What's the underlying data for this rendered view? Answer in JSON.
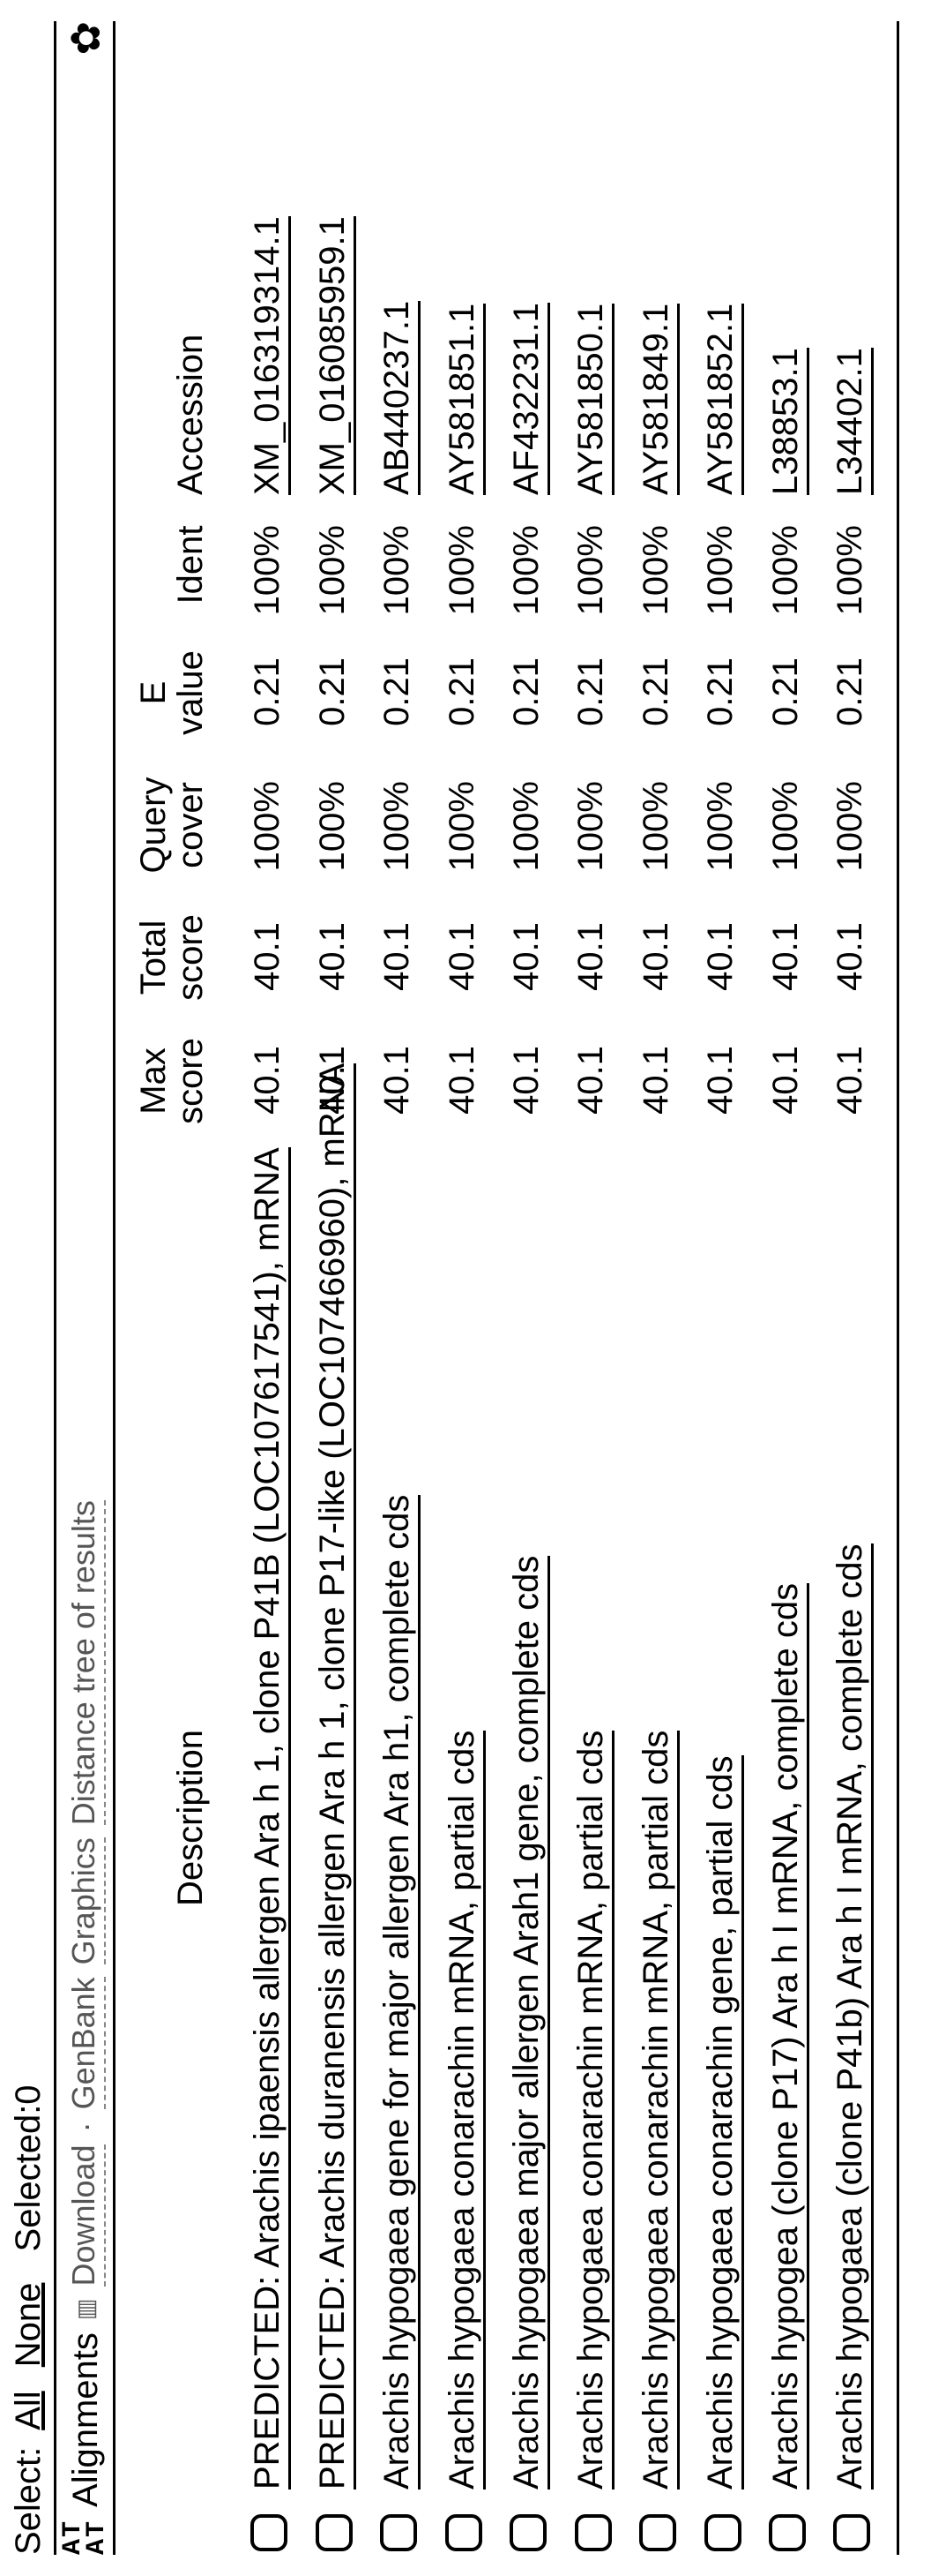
{
  "select_row": {
    "label": "Select:",
    "all": "All",
    "none": "None",
    "selected_label": "Selected:",
    "selected_count": "0"
  },
  "toolbar": {
    "at_top": "AT",
    "at_bot": "AT",
    "alignments": "Alignments",
    "download": "Download",
    "genbank": "GenBank",
    "graphics": "Graphics",
    "distance_tree": "Distance tree of results"
  },
  "columns": {
    "description": "Description",
    "max_score_l1": "Max",
    "max_score_l2": "score",
    "total_score_l1": "Total",
    "total_score_l2": "score",
    "query_cover_l1": "Query",
    "query_cover_l2": "cover",
    "e_value_l1": "E",
    "e_value_l2": "value",
    "ident": "Ident",
    "accession": "Accession"
  },
  "rows": [
    {
      "description": "PREDICTED: Arachis ipaensis allergen Ara h 1, clone P41B (LOC107617541), mRNA",
      "max_score": "40.1",
      "total_score": "40.1",
      "query_cover": "100%",
      "e_value": "0.21",
      "ident": "100%",
      "accession": "XM_016319314.1"
    },
    {
      "description": "PREDICTED: Arachis duranensis allergen Ara h 1, clone P17-like (LOC107466960), mRNA",
      "max_score": "40.1",
      "total_score": "40.1",
      "query_cover": "100%",
      "e_value": "0.21",
      "ident": "100%",
      "accession": "XM_016085959.1"
    },
    {
      "description": "Arachis hypogaea gene for major allergen Ara h1, complete cds",
      "max_score": "40.1",
      "total_score": "40.1",
      "query_cover": "100%",
      "e_value": "0.21",
      "ident": "100%",
      "accession": "AB440237.1"
    },
    {
      "description": "Arachis hypogaea conarachin mRNA, partial cds",
      "max_score": "40.1",
      "total_score": "40.1",
      "query_cover": "100%",
      "e_value": "0.21",
      "ident": "100%",
      "accession": "AY581851.1"
    },
    {
      "description": "Arachis hypogaea major allergen Arah1 gene, complete cds",
      "max_score": "40.1",
      "total_score": "40.1",
      "query_cover": "100%",
      "e_value": "0.21",
      "ident": "100%",
      "accession": "AF432231.1"
    },
    {
      "description": "Arachis hypogaea conarachin mRNA, partial cds",
      "max_score": "40.1",
      "total_score": "40.1",
      "query_cover": "100%",
      "e_value": "0.21",
      "ident": "100%",
      "accession": "AY581850.1"
    },
    {
      "description": "Arachis hypogaea conarachin mRNA, partial cds",
      "max_score": "40.1",
      "total_score": "40.1",
      "query_cover": "100%",
      "e_value": "0.21",
      "ident": "100%",
      "accession": "AY581849.1"
    },
    {
      "description": "Arachis hypogaea conarachin gene, partial cds",
      "max_score": "40.1",
      "total_score": "40.1",
      "query_cover": "100%",
      "e_value": "0.21",
      "ident": "100%",
      "accession": "AY581852.1"
    },
    {
      "description": "Arachis hypogea (clone P17) Ara h I mRNA, complete cds",
      "max_score": "40.1",
      "total_score": "40.1",
      "query_cover": "100%",
      "e_value": "0.21",
      "ident": "100%",
      "accession": "L38853.1"
    },
    {
      "description": "Arachis hypogaea (clone P41b) Ara h I mRNA, complete cds",
      "max_score": "40.1",
      "total_score": "40.1",
      "query_cover": "100%",
      "e_value": "0.21",
      "ident": "100%",
      "accession": "L34402.1"
    }
  ]
}
